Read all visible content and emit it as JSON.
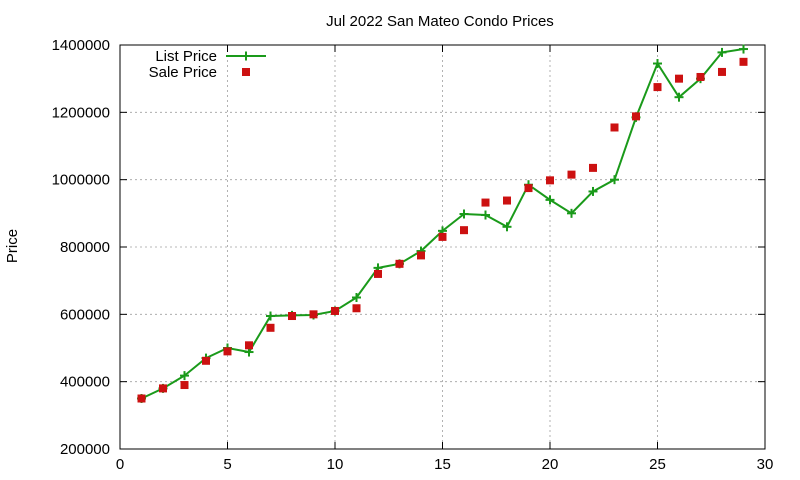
{
  "chart_data": {
    "type": "line",
    "title": "Jul 2022 San Mateo Condo Prices",
    "xlabel": "",
    "ylabel": "Price",
    "xlim": [
      0,
      30
    ],
    "ylim": [
      200000,
      1400000
    ],
    "x_ticks": [
      "0",
      "5",
      "10",
      "15",
      "20",
      "25",
      "30"
    ],
    "y_ticks": [
      "200000",
      "400000",
      "600000",
      "800000",
      "1000000",
      "1200000",
      "1400000"
    ],
    "x_tick_values": [
      0,
      5,
      10,
      15,
      20,
      25,
      30
    ],
    "y_tick_values": [
      200000,
      400000,
      600000,
      800000,
      1000000,
      1200000,
      1400000
    ],
    "grid": true,
    "legend_position": "top-left",
    "x": [
      1,
      2,
      3,
      4,
      5,
      6,
      7,
      8,
      9,
      10,
      11,
      12,
      13,
      14,
      15,
      16,
      17,
      18,
      19,
      20,
      21,
      22,
      23,
      24,
      25,
      26,
      27,
      28,
      29
    ],
    "series": [
      {
        "name": "List Price",
        "style": "line+plus",
        "color": "#1a9a1a",
        "values": [
          350000,
          380000,
          418000,
          470000,
          500000,
          488000,
          595000,
          597000,
          598000,
          610000,
          650000,
          738000,
          750000,
          788000,
          848000,
          898000,
          895000,
          860000,
          985000,
          940000,
          900000,
          965000,
          1000000,
          1185000,
          1345000,
          1245000,
          1300000,
          1378000,
          1388000
        ]
      },
      {
        "name": "Sale Price",
        "style": "square",
        "color": "#cc1111",
        "values": [
          350000,
          380000,
          390000,
          462000,
          490000,
          508000,
          560000,
          595000,
          600000,
          610000,
          618000,
          720000,
          750000,
          775000,
          830000,
          850000,
          932000,
          938000,
          975000,
          998000,
          1015000,
          1035000,
          1155000,
          1188000,
          1275000,
          1300000,
          1305000,
          1320000,
          1350000
        ]
      }
    ]
  }
}
